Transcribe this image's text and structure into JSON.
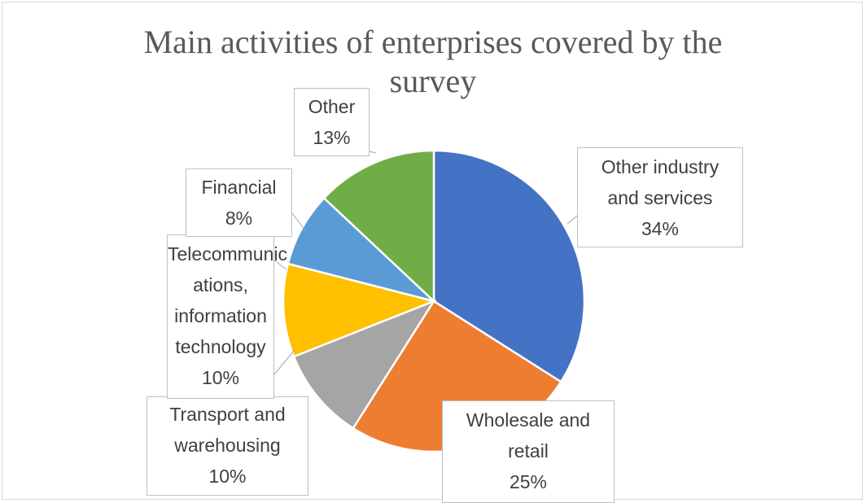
{
  "chart_data": {
    "type": "pie",
    "title": "Main activities of enterprises covered by the survey",
    "slices": [
      {
        "label": "Other industry and services",
        "value": 34,
        "value_label": "34%",
        "color": "#4472c4"
      },
      {
        "label": "Wholesale and retail",
        "value": 25,
        "value_label": "25%",
        "color": "#ed7d31"
      },
      {
        "label": "Transport and warehousing",
        "value": 10,
        "value_label": "10%",
        "color": "#a5a5a5"
      },
      {
        "label": "Telecommunications, information technology",
        "value": 10,
        "value_label": "10%",
        "color": "#ffc000"
      },
      {
        "label": "Financial",
        "value": 8,
        "value_label": "8%",
        "color": "#5b9bd5"
      },
      {
        "label": "Other",
        "value": 13,
        "value_label": "13%",
        "color": "#70ad47"
      }
    ],
    "start_angle_deg": 0,
    "direction": "clockwise",
    "legend": "none",
    "data_labels": "callouts"
  }
}
